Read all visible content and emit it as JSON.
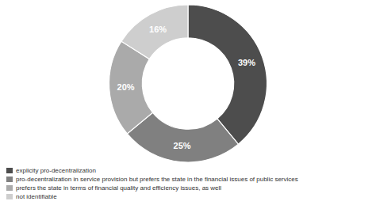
{
  "chart_data": {
    "type": "donut",
    "categories": [
      "explicity pro-decentralization",
      "pro-decentralization in service provision but prefers the state in the financial issues of public services",
      "prefers the state in terms of financial quality and efficiency issues, as well",
      "not identifiable"
    ],
    "values": [
      39,
      25,
      20,
      16
    ],
    "value_labels": [
      "39%",
      "25%",
      "20%",
      "16%"
    ],
    "colors": [
      "#4d4d4d",
      "#808080",
      "#aaaaaa",
      "#cecece"
    ],
    "data_labels": true,
    "legend": "lower left"
  }
}
